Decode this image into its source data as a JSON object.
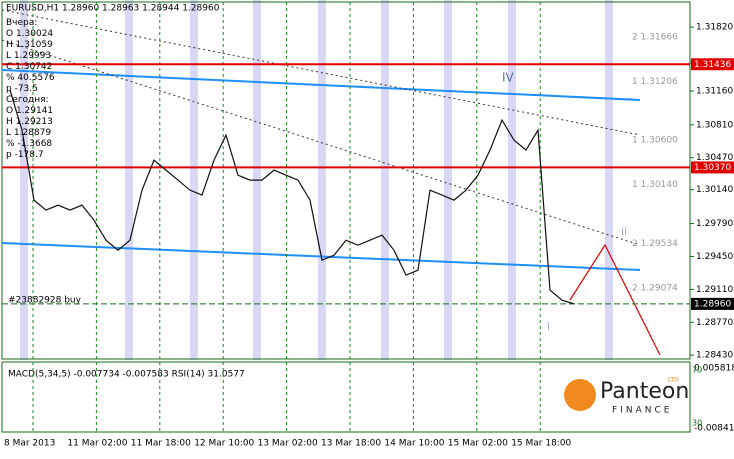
{
  "chart_data": {
    "type": "line",
    "title": "EURUSD,H1  1.28960 1.28963 1.28944 1.28960",
    "info": [
      "Вчера:",
      "O 1.30024",
      "H 1.31059",
      "L 1.29993",
      "C 1.30742",
      "% 40.5576",
      "p -73.5",
      "Сегодня:",
      "O 1.29141",
      "H 1.29213",
      "L 1.28879",
      "% -1.3668",
      "p -178.7"
    ],
    "color": "#111111",
    "values": [
      1.31169,
      1.30755,
      1.30032,
      1.29929,
      1.2998,
      1.29929,
      1.2998,
      1.29825,
      1.29618,
      1.29515,
      1.29618,
      1.30135,
      1.30445,
      1.30342,
      1.30239,
      1.30135,
      1.30084,
      1.30445,
      1.30704,
      1.3029,
      1.30239,
      1.30239,
      1.30342,
      1.3029,
      1.30239,
      1.30032,
      1.29412,
      1.29463,
      1.29618,
      1.29567,
      1.29618,
      1.2967,
      1.29515,
      1.29257,
      1.29308,
      1.30135,
      1.30084,
      1.30032,
      1.30135,
      1.3029,
      1.30549,
      1.30859,
      1.30652,
      1.30549,
      1.30755,
      1.29102,
      1.28998,
      1.2896
    ],
    "ylim": [
      1.2838,
      1.321
    ],
    "yticks": [
      {
        "value": 1.3182,
        "label": "1.31820"
      },
      {
        "value": 1.3145,
        "label": "1.31450"
      },
      {
        "value": 1.3116,
        "label": "1.31160"
      },
      {
        "value": 1.3081,
        "label": "1.30810"
      },
      {
        "value": 1.3047,
        "label": "1.30470"
      },
      {
        "value": 1.3014,
        "label": "1.30140"
      },
      {
        "value": 1.2979,
        "label": "1.29790"
      },
      {
        "value": 1.2945,
        "label": "1.29450"
      },
      {
        "value": 1.2911,
        "label": "1.29110"
      },
      {
        "value": 1.2877,
        "label": "1.28770"
      },
      {
        "value": 1.2843,
        "label": "1.28430"
      }
    ],
    "levels": [
      {
        "value": 1.31436,
        "color": "#e00000"
      },
      {
        "value": 1.3037,
        "label": "1.30370",
        "color": "#e00000"
      },
      {
        "value": 1.2896,
        "label": "1.28960",
        "color": "#1a6b1a"
      }
    ],
    "fib_labels": [
      {
        "value": 1.31666,
        "label": "2 1.31666"
      },
      {
        "value": 1.31206,
        "label": "1 1.31206"
      },
      {
        "value": 1.306,
        "label": "1 1.30600"
      },
      {
        "value": 1.3014,
        "label": "1 1.30140"
      },
      {
        "value": 1.29534,
        "label": "2 1.29534"
      },
      {
        "value": 1.29074,
        "label": "2 1.29074"
      }
    ],
    "order_label": "#23882928 buy",
    "wave_labels": [
      "IV",
      "ii",
      "i"
    ],
    "x_labels": [
      "8 Mar 2013",
      "11 Mar 02:00",
      "11 Mar 18:00",
      "12 Mar 10:00",
      "13 Mar 02:00",
      "13 Mar 18:00",
      "14 Mar 10:00",
      "15 Mar 02:00",
      "15 Mar 18:00"
    ],
    "indicator": {
      "label": "MACD(5,34,5) -0.007734 -0.007583 RSI(14) 31.0577",
      "top": "0.005818",
      "bottom": "-0.00841",
      "rsi_high": "70",
      "rsi_low": "30"
    },
    "logo": {
      "name": "Panteon",
      "sub": "FINANCE",
      "badge": "LTD"
    }
  }
}
